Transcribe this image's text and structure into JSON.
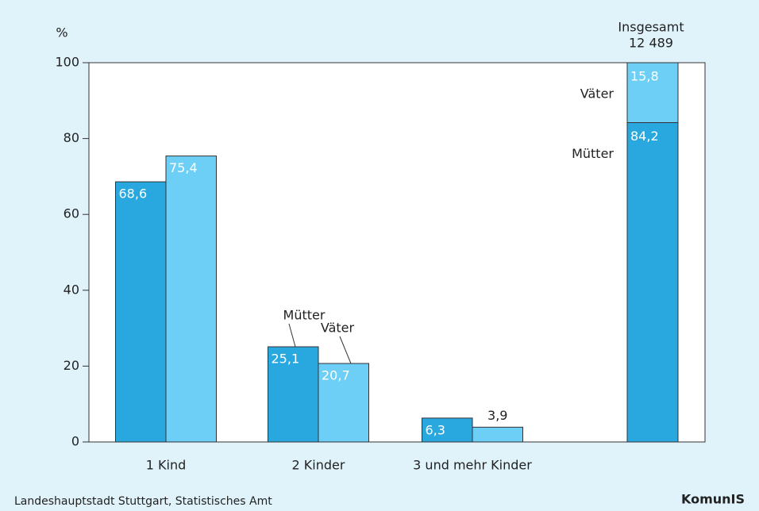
{
  "chart_data": {
    "type": "bar",
    "y_label": "%",
    "categories": [
      "1 Kind",
      "2 Kinder",
      "3 und mehr Kinder"
    ],
    "series": [
      {
        "name": "Mütter",
        "color": "#29a8e0",
        "values": [
          68.6,
          25.1,
          6.3
        ],
        "value_labels": [
          "68,6",
          "25,1",
          "6,3"
        ]
      },
      {
        "name": "Väter",
        "color": "#6dcff6",
        "values": [
          75.4,
          20.7,
          3.9
        ],
        "value_labels": [
          "75,4",
          "20,7",
          "3,9"
        ]
      }
    ],
    "total": {
      "title": "Insgesamt",
      "count": "12 489",
      "values": [
        84.2,
        15.8
      ],
      "value_labels": [
        "84,2",
        "15,8"
      ]
    },
    "ylim": [
      0,
      100
    ],
    "yticks": [
      0,
      20,
      40,
      60,
      80,
      100
    ],
    "source": "Landeshauptstadt Stuttgart, Statistisches Amt",
    "logo": "KomunIS"
  }
}
